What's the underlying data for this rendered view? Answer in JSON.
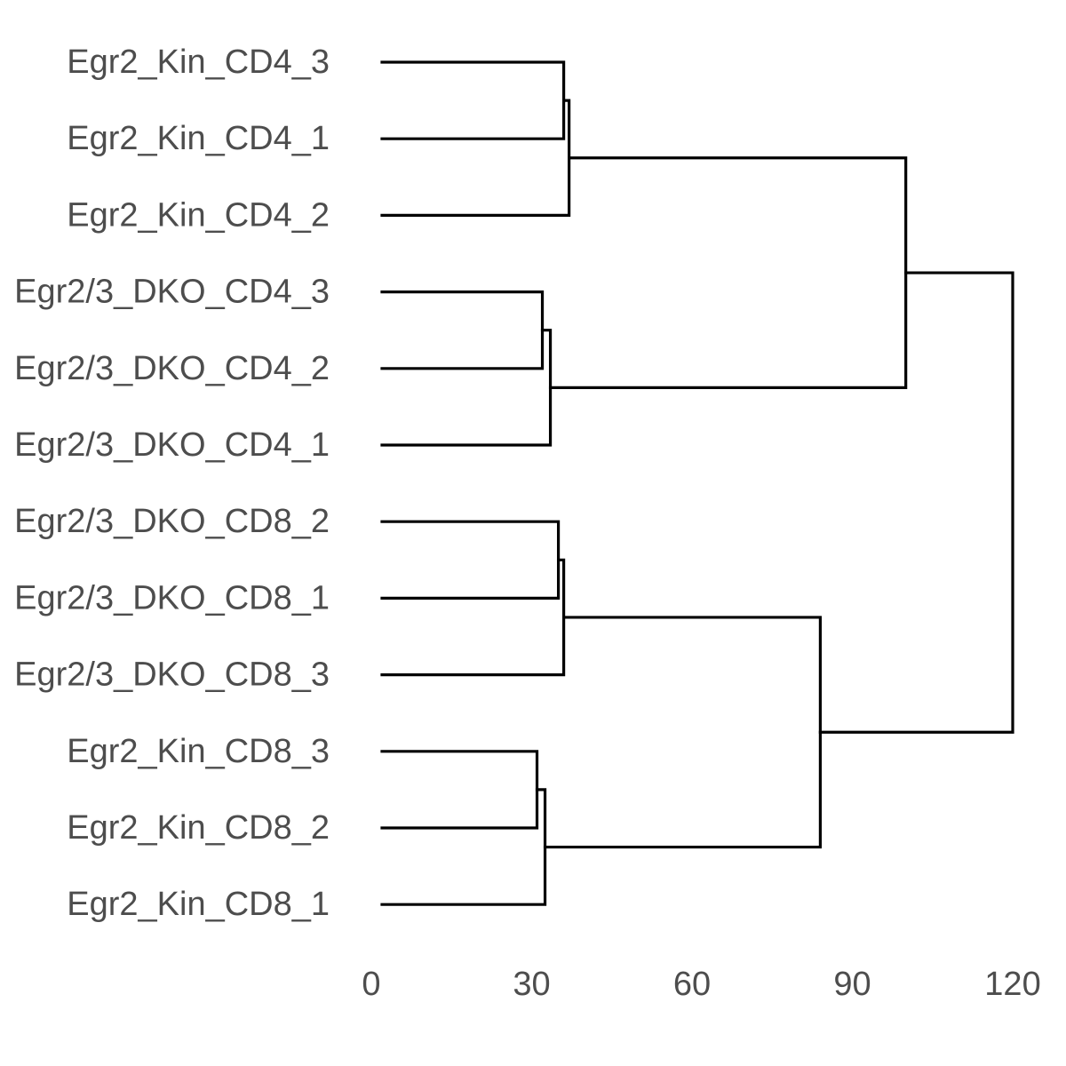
{
  "chart_data": {
    "type": "dendrogram",
    "orientation": "horizontal",
    "title": "",
    "xlabel": "",
    "ylabel": "",
    "xlim": [
      0,
      120
    ],
    "x_ticks": [
      0,
      30,
      60,
      90,
      120
    ],
    "x_tick_labels": [
      "0",
      "30",
      "60",
      "90",
      "120"
    ],
    "grid": false,
    "line_color": "#000000",
    "label_color": "#4d4d4d",
    "leaves": [
      "Egr2_Kin_CD4_3",
      "Egr2_Kin_CD4_1",
      "Egr2_Kin_CD4_2",
      "Egr2/3_DKO_CD4_3",
      "Egr2/3_DKO_CD4_2",
      "Egr2/3_DKO_CD4_1",
      "Egr2/3_DKO_CD8_2",
      "Egr2/3_DKO_CD8_1",
      "Egr2/3_DKO_CD8_3",
      "Egr2_Kin_CD8_3",
      "Egr2_Kin_CD8_2",
      "Egr2_Kin_CD8_1"
    ],
    "merges": [
      {
        "id": "m1",
        "children": [
          "Egr2_Kin_CD4_3",
          "Egr2_Kin_CD4_1"
        ],
        "height": 36
      },
      {
        "id": "m2",
        "children": [
          "m1",
          "Egr2_Kin_CD4_2"
        ],
        "height": 37
      },
      {
        "id": "m3",
        "children": [
          "Egr2/3_DKO_CD4_3",
          "Egr2/3_DKO_CD4_2"
        ],
        "height": 32
      },
      {
        "id": "m4",
        "children": [
          "m3",
          "Egr2/3_DKO_CD4_1"
        ],
        "height": 33.5
      },
      {
        "id": "m5",
        "children": [
          "m2",
          "m4"
        ],
        "height": 100
      },
      {
        "id": "m6",
        "children": [
          "Egr2/3_DKO_CD8_2",
          "Egr2/3_DKO_CD8_1"
        ],
        "height": 35
      },
      {
        "id": "m7",
        "children": [
          "m6",
          "Egr2/3_DKO_CD8_3"
        ],
        "height": 36
      },
      {
        "id": "m8",
        "children": [
          "Egr2_Kin_CD8_3",
          "Egr2_Kin_CD8_2"
        ],
        "height": 31
      },
      {
        "id": "m9",
        "children": [
          "m8",
          "Egr2_Kin_CD8_1"
        ],
        "height": 32.5
      },
      {
        "id": "m10",
        "children": [
          "m7",
          "m9"
        ],
        "height": 84
      },
      {
        "id": "m11",
        "children": [
          "m5",
          "m10"
        ],
        "height": 120
      }
    ]
  }
}
